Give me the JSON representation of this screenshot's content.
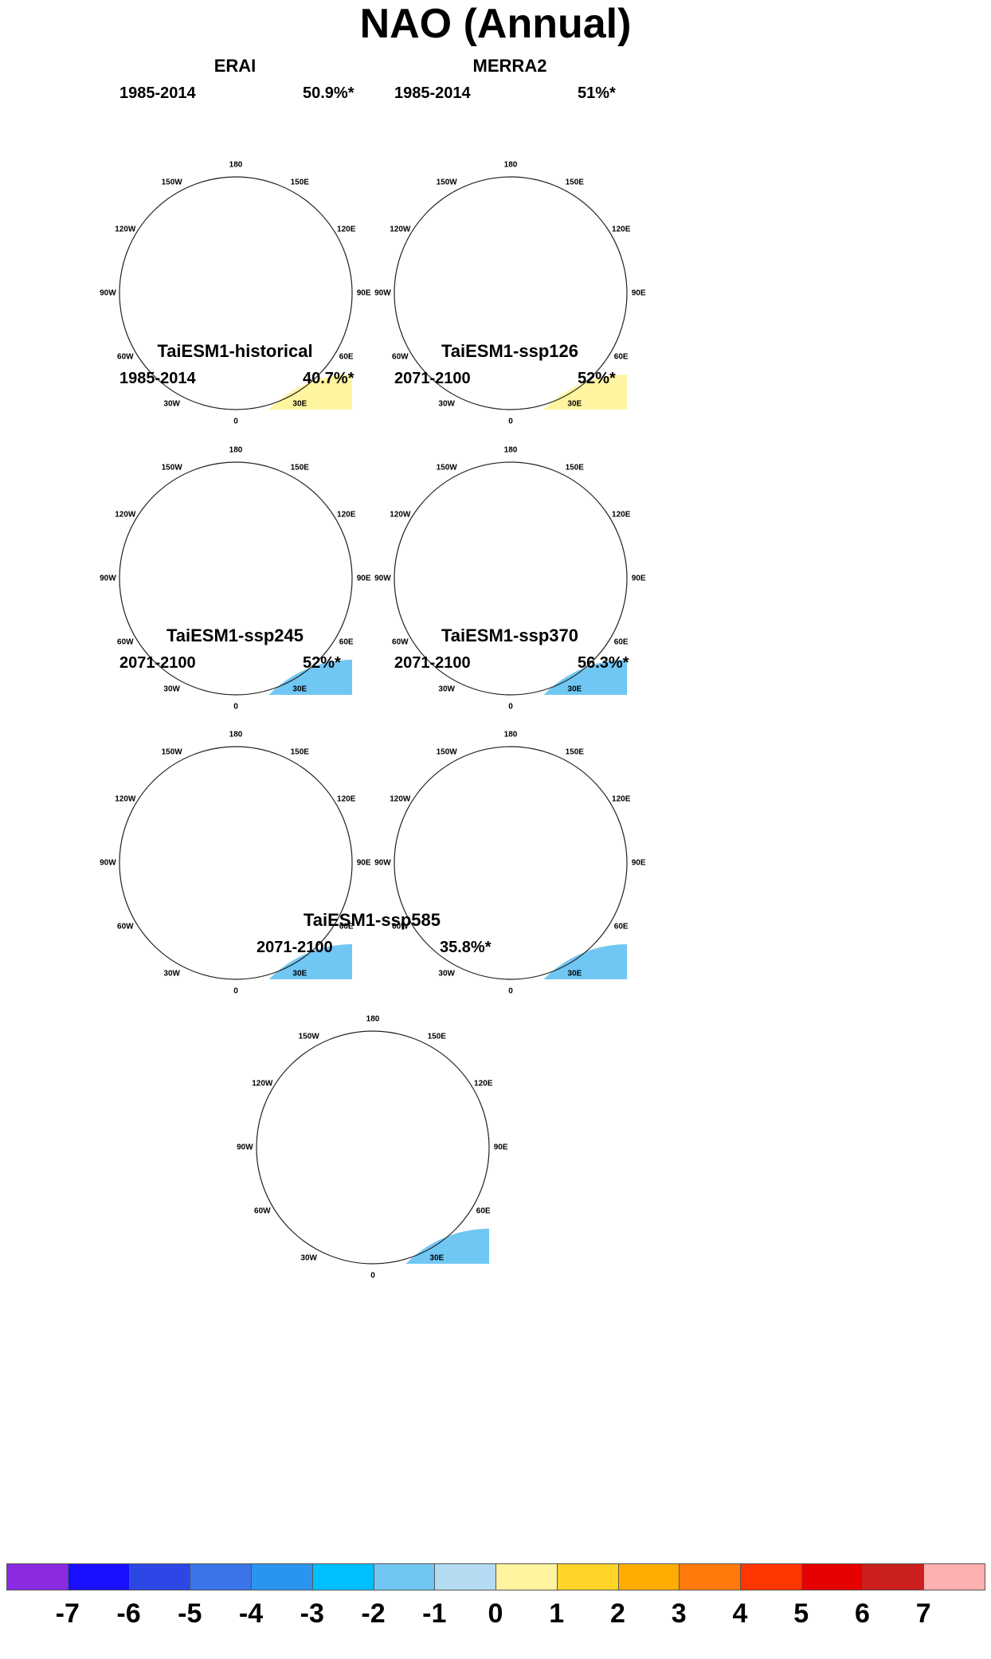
{
  "title": "NAO (Annual)",
  "chart_data": {
    "type": "heatmap",
    "title": "NAO (Annual)",
    "projection": "north polar stereographic",
    "longitude_labels": [
      "180",
      "150E",
      "120E",
      "90E",
      "60E",
      "30E",
      "0",
      "30W",
      "60W",
      "90W",
      "120W",
      "150W"
    ],
    "colorbar": {
      "ticks": [
        "-7",
        "-6",
        "-5",
        "-4",
        "-3",
        "-2",
        "-1",
        "0",
        "1",
        "2",
        "3",
        "4",
        "5",
        "6",
        "7"
      ],
      "colors": [
        "#8a2be2",
        "#1a0fff",
        "#2d47e6",
        "#3b73e8",
        "#2a95f0",
        "#00bfff",
        "#71c7f4",
        "#b3dcf2",
        "#fff4a0",
        "#ffd426",
        "#ffab00",
        "#ff7a0a",
        "#ff3600",
        "#e60000",
        "#cc1f1f",
        "#ffb0b0"
      ]
    },
    "panels": [
      {
        "name": "ERAI",
        "period": "1985-2014",
        "variance": "50.9%*",
        "pattern": "erai"
      },
      {
        "name": "MERRA2",
        "period": "1985-2014",
        "variance": "51%*",
        "pattern": "merra"
      },
      {
        "name": "TaiESM1-historical",
        "period": "1985-2014",
        "variance": "40.7%*",
        "pattern": "hist"
      },
      {
        "name": "TaiESM1-ssp126",
        "period": "2071-2100",
        "variance": "52%*",
        "pattern": "s126"
      },
      {
        "name": "TaiESM1-ssp245",
        "period": "2071-2100",
        "variance": "52%*",
        "pattern": "s245"
      },
      {
        "name": "TaiESM1-ssp370",
        "period": "2071-2100",
        "variance": "56.3%*",
        "pattern": "s370"
      },
      {
        "name": "TaiESM1-ssp585",
        "period": "2071-2100",
        "variance": "35.8%*",
        "pattern": "s585"
      }
    ]
  }
}
